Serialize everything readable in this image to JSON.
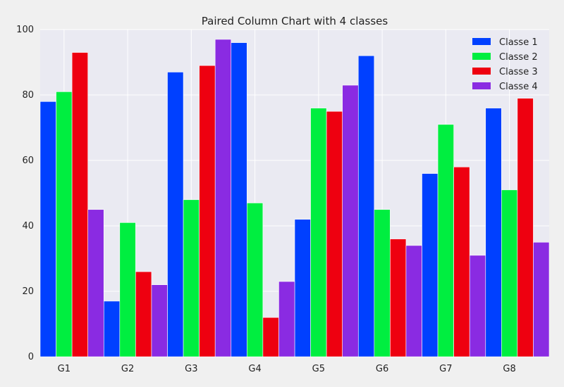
{
  "chart_data": {
    "type": "bar",
    "title": "Paired Column Chart with 4 classes",
    "xlabel": "",
    "ylabel": "",
    "categories": [
      "G1",
      "G2",
      "G3",
      "G4",
      "G5",
      "G6",
      "G7",
      "G8"
    ],
    "series": [
      {
        "name": "Classe 1",
        "color": "#0040ff",
        "values": [
          78,
          17,
          87,
          96,
          42,
          92,
          56,
          76
        ]
      },
      {
        "name": "Classe 2",
        "color": "#00ee40",
        "values": [
          81,
          41,
          48,
          47,
          76,
          45,
          71,
          51
        ]
      },
      {
        "name": "Classe 3",
        "color": "#ee0010",
        "values": [
          93,
          26,
          89,
          12,
          75,
          36,
          58,
          79
        ]
      },
      {
        "name": "Classe 4",
        "color": "#8a2be2",
        "values": [
          45,
          22,
          97,
          23,
          83,
          34,
          31,
          35
        ]
      }
    ],
    "ylim": [
      0,
      100
    ],
    "yticks": [
      0,
      20,
      40,
      60,
      80,
      100
    ],
    "grid": true,
    "legend_position": "top-right",
    "plot_background": "#eaeaf2",
    "grid_color": "#ffffff"
  }
}
